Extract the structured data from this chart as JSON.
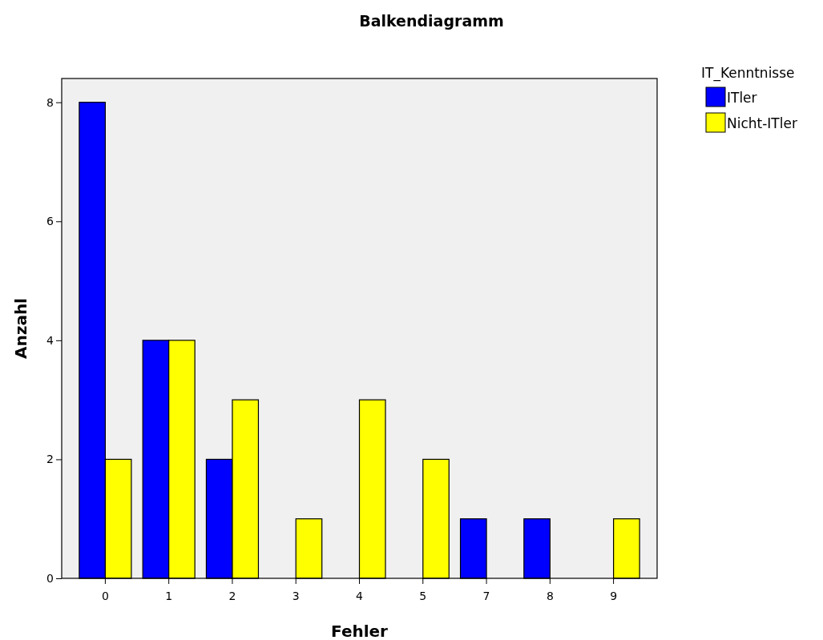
{
  "chart_data": {
    "type": "bar",
    "title": "Balkendiagramm",
    "xlabel": "Fehler",
    "ylabel": "Anzahl",
    "legend_title": "IT_Kenntnisse",
    "categories": [
      "0",
      "1",
      "2",
      "3",
      "4",
      "5",
      "7",
      "8",
      "9"
    ],
    "series": [
      {
        "name": "ITler",
        "color": "#0000ff",
        "values": [
          8,
          4,
          2,
          null,
          null,
          null,
          1,
          1,
          null
        ]
      },
      {
        "name": "Nicht-ITler",
        "color": "#ffff00",
        "values": [
          2,
          4,
          3,
          1,
          3,
          2,
          null,
          null,
          1
        ]
      }
    ],
    "ylim": [
      0,
      8.4
    ],
    "yticks": [
      0,
      2,
      4,
      6,
      8
    ],
    "grid": false,
    "legend": "top right"
  }
}
